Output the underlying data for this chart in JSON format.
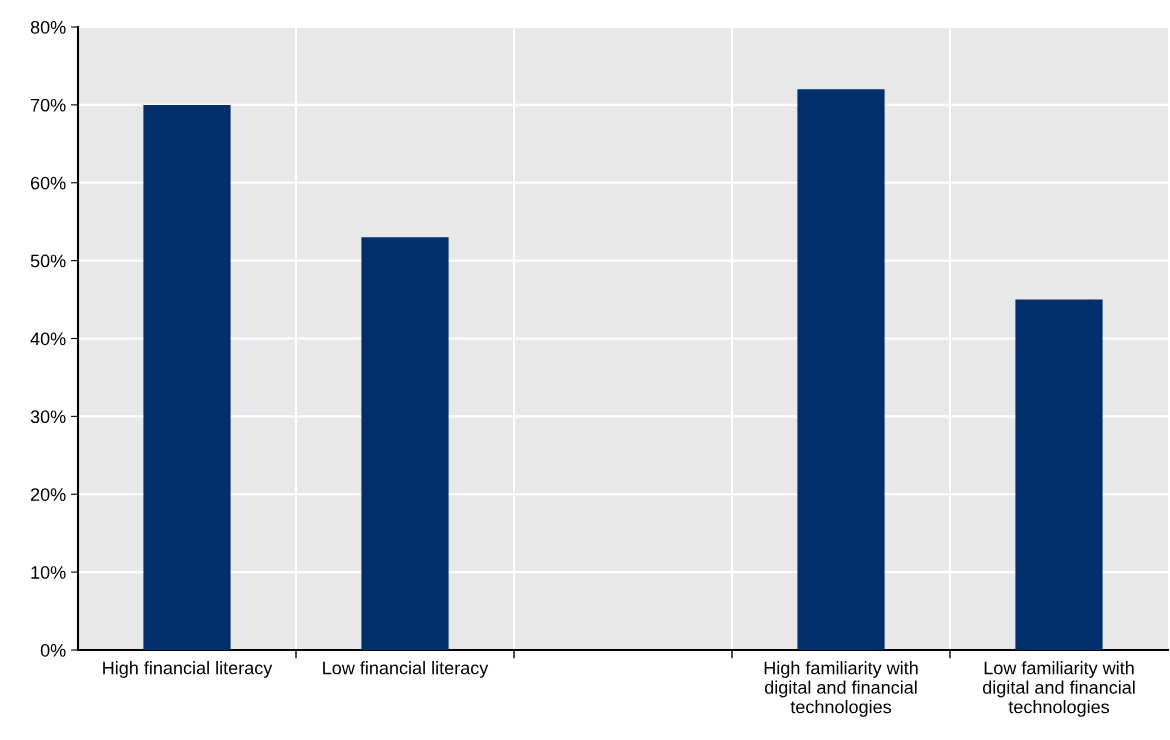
{
  "chart_data": {
    "type": "bar",
    "categories": [
      "High financial literacy",
      "Low financial literacy",
      null,
      "High familiarity with\ndigital and financial\ntechnologies",
      "Low familiarity with\ndigital and financial\ntechnologies"
    ],
    "values": [
      70,
      53,
      null,
      72,
      45
    ],
    "color": "#002f6c",
    "ylim": [
      0,
      80
    ],
    "yticks": [
      {
        "value": 0,
        "label": "0%"
      },
      {
        "value": 10,
        "label": "10%"
      },
      {
        "value": 20,
        "label": "20%"
      },
      {
        "value": 30,
        "label": "30%"
      },
      {
        "value": 40,
        "label": "40%"
      },
      {
        "value": 50,
        "label": "50%"
      },
      {
        "value": 60,
        "label": "60%"
      },
      {
        "value": 70,
        "label": "70%"
      },
      {
        "value": 80,
        "label": "80%"
      }
    ],
    "grid": true,
    "legend": false
  }
}
